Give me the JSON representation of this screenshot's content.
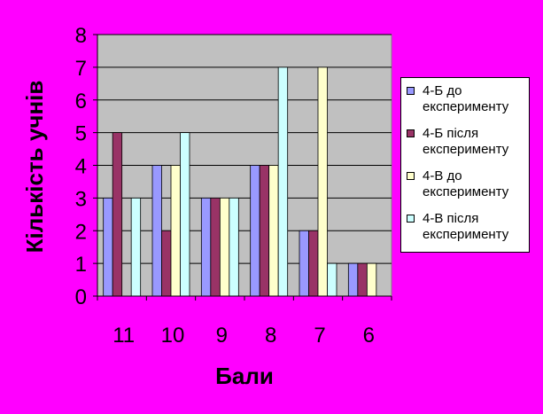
{
  "chart_data": {
    "type": "bar",
    "title": "",
    "xlabel": "Бали",
    "ylabel": "Кількість учнів",
    "categories": [
      "11",
      "10",
      "9",
      "8",
      "7",
      "6"
    ],
    "ylim": [
      0,
      8
    ],
    "yticks": [
      "0",
      "1",
      "2",
      "3",
      "4",
      "5",
      "6",
      "7",
      "8"
    ],
    "grid": true,
    "legend_position": "right",
    "series": [
      {
        "name": "4-Б до\nексперименту",
        "values": [
          3,
          4,
          3,
          4,
          2,
          1
        ],
        "color": "#9999ff"
      },
      {
        "name": "4-Б після\nексперименту",
        "values": [
          5,
          2,
          3,
          4,
          2,
          1
        ],
        "color": "#993366"
      },
      {
        "name": "4-В до\nексперименту",
        "values": [
          0,
          4,
          3,
          4,
          7,
          1
        ],
        "color": "#ffffcc"
      },
      {
        "name": "4-В після\nексперименту",
        "values": [
          3,
          5,
          3,
          7,
          1,
          0
        ],
        "color": "#ccffff"
      }
    ],
    "colors": {
      "background": "#ff00ff",
      "plot_area": "#c0c0c0"
    }
  }
}
